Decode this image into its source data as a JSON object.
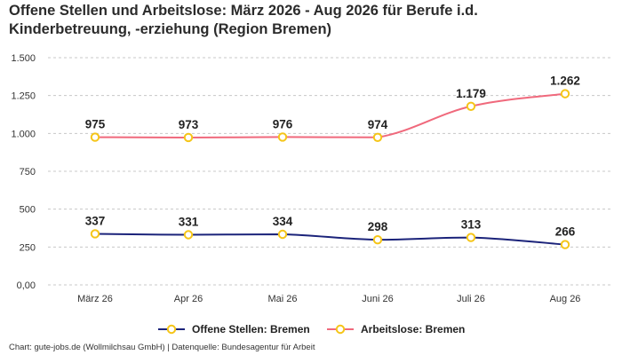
{
  "title_line1": "Offene Stellen und Arbeitslose: März 2026 - Aug 2026 für Berufe i.d.",
  "title_line2": "Kinderbetreuung, -erziehung (Region Bremen)",
  "footer": "Chart: gute-jobs.de (Wollmilchsau GmbH) | Datenquelle: Bundesagentur für Arbeit",
  "chart_data": {
    "type": "line",
    "categories": [
      "März 26",
      "Apr 26",
      "Mai 26",
      "Juni 26",
      "Juli 26",
      "Aug 26"
    ],
    "ylim": [
      0,
      1500
    ],
    "y_ticks": [
      {
        "value": 0,
        "label": "0,00"
      },
      {
        "value": 250,
        "label": "250"
      },
      {
        "value": 500,
        "label": "500"
      },
      {
        "value": 750,
        "label": "750"
      },
      {
        "value": 1000,
        "label": "1.000"
      },
      {
        "value": 1250,
        "label": "1.250"
      },
      {
        "value": 1500,
        "label": "1.500"
      }
    ],
    "grid": true,
    "legend_position": "bottom",
    "series": [
      {
        "name": "Offene Stellen: Bremen",
        "color": "#1b237a",
        "values": [
          337,
          331,
          334,
          298,
          313,
          266
        ],
        "labels": [
          "337",
          "331",
          "334",
          "298",
          "313",
          "266"
        ]
      },
      {
        "name": "Arbeitslose: Bremen",
        "color": "#f0697c",
        "values": [
          975,
          973,
          976,
          974,
          1179,
          1262
        ],
        "labels": [
          "975",
          "973",
          "976",
          "974",
          "1.179",
          "1.262"
        ]
      }
    ],
    "marker_color": "#f5c518"
  }
}
